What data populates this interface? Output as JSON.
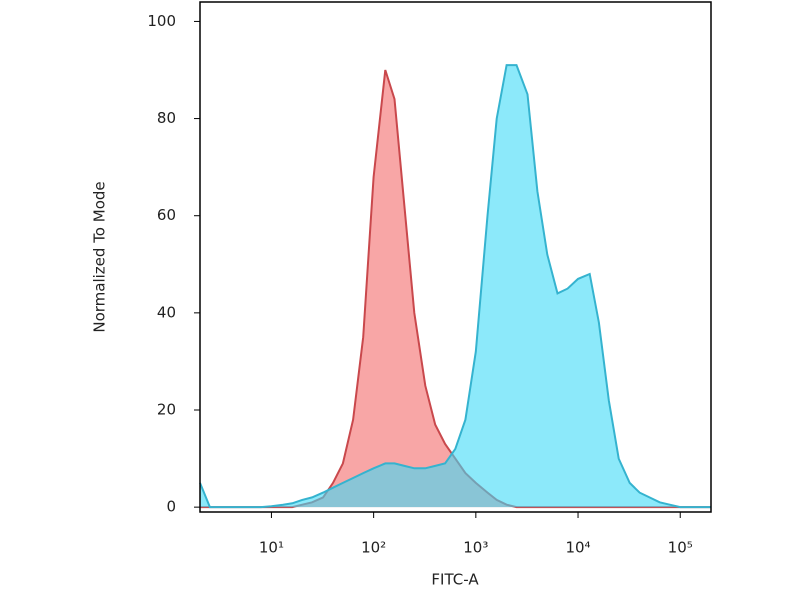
{
  "chart_data": {
    "type": "area",
    "x_label": "FITC-A",
    "y_label": "Normalized To Mode",
    "x_scale": "log",
    "x": [
      2,
      2.5,
      3.2,
      4,
      5,
      6.3,
      7.9,
      10,
      13,
      16,
      20,
      25,
      32,
      40,
      50,
      63,
      79,
      100,
      130,
      160,
      200,
      250,
      320,
      400,
      500,
      630,
      790,
      1000,
      1300,
      1600,
      2000,
      2500,
      3200,
      4000,
      5000,
      6300,
      7900,
      10000,
      13000,
      16000,
      20000,
      25000,
      32000,
      40000,
      50000,
      63000,
      79000,
      100000,
      130000,
      160000,
      200000
    ],
    "series": [
      {
        "color": "#f46a6a",
        "line_color": "#c9484c",
        "values": [
          0,
          0,
          0,
          0,
          0,
          0,
          0,
          0,
          0,
          0,
          0.5,
          1,
          2,
          5,
          9,
          18,
          35,
          68,
          90,
          84,
          62,
          40,
          25,
          17,
          13,
          10,
          7,
          5,
          3,
          1.5,
          0.5,
          0,
          0,
          0,
          0,
          0,
          0,
          0,
          0,
          0,
          0,
          0,
          0,
          0,
          0,
          0,
          0,
          0,
          0,
          0,
          0
        ]
      },
      {
        "color": "#3fdaf6",
        "line_color": "#35b3cf",
        "values": [
          5,
          0,
          0,
          0,
          0,
          0,
          0,
          0.2,
          0.5,
          0.8,
          1.5,
          2,
          3,
          4,
          5,
          6,
          7,
          8,
          9,
          9,
          8.5,
          8,
          8,
          8.5,
          9,
          12,
          18,
          32,
          60,
          80,
          91,
          91,
          85,
          65,
          52,
          44,
          45,
          47,
          48,
          38,
          22,
          10,
          5,
          3,
          2,
          1,
          0.5,
          0,
          0,
          0,
          0
        ]
      }
    ],
    "xlim": [
      2,
      200000
    ],
    "ylim": [
      -1,
      104
    ],
    "xticks": [
      {
        "value": 10,
        "label": "10¹"
      },
      {
        "value": 100,
        "label": "10²"
      },
      {
        "value": 1000,
        "label": "10³"
      },
      {
        "value": 10000,
        "label": "10⁴"
      },
      {
        "value": 100000,
        "label": "10⁵"
      }
    ],
    "yticks": [
      0,
      20,
      40,
      60,
      80,
      100
    ]
  }
}
